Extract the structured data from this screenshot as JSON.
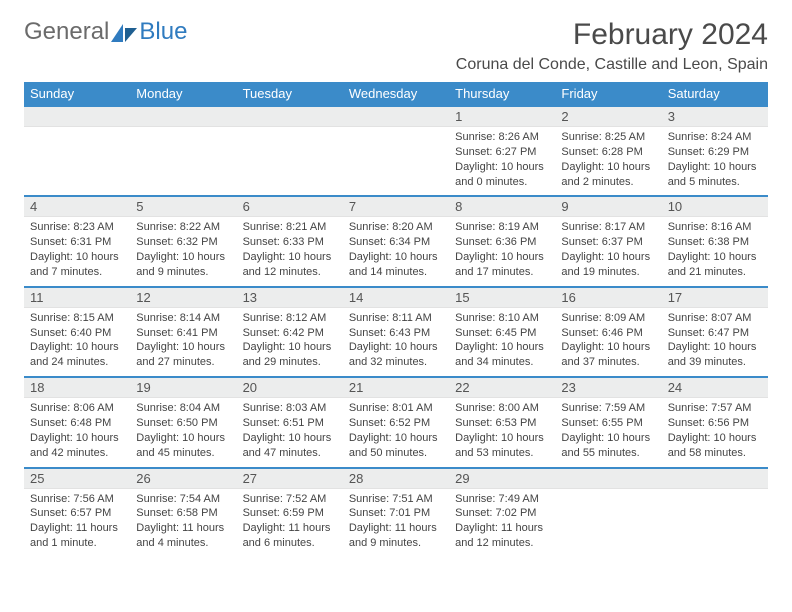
{
  "logo": {
    "general": "General",
    "blue": "Blue"
  },
  "title": "February 2024",
  "location": "Coruna del Conde, Castille and Leon, Spain",
  "colors": {
    "header_bg": "#3b8bc9",
    "header_text": "#ffffff",
    "daynum_bg": "#eceded",
    "row_divider": "#3b8bc9",
    "logo_gray": "#6b6b6b",
    "logo_blue": "#2f7bbf",
    "body_text": "#444444"
  },
  "weekdays": [
    "Sunday",
    "Monday",
    "Tuesday",
    "Wednesday",
    "Thursday",
    "Friday",
    "Saturday"
  ],
  "weeks": [
    [
      null,
      null,
      null,
      null,
      {
        "d": "1",
        "sr": "8:26 AM",
        "ss": "6:27 PM",
        "dl": "10 hours and 0 minutes."
      },
      {
        "d": "2",
        "sr": "8:25 AM",
        "ss": "6:28 PM",
        "dl": "10 hours and 2 minutes."
      },
      {
        "d": "3",
        "sr": "8:24 AM",
        "ss": "6:29 PM",
        "dl": "10 hours and 5 minutes."
      }
    ],
    [
      {
        "d": "4",
        "sr": "8:23 AM",
        "ss": "6:31 PM",
        "dl": "10 hours and 7 minutes."
      },
      {
        "d": "5",
        "sr": "8:22 AM",
        "ss": "6:32 PM",
        "dl": "10 hours and 9 minutes."
      },
      {
        "d": "6",
        "sr": "8:21 AM",
        "ss": "6:33 PM",
        "dl": "10 hours and 12 minutes."
      },
      {
        "d": "7",
        "sr": "8:20 AM",
        "ss": "6:34 PM",
        "dl": "10 hours and 14 minutes."
      },
      {
        "d": "8",
        "sr": "8:19 AM",
        "ss": "6:36 PM",
        "dl": "10 hours and 17 minutes."
      },
      {
        "d": "9",
        "sr": "8:17 AM",
        "ss": "6:37 PM",
        "dl": "10 hours and 19 minutes."
      },
      {
        "d": "10",
        "sr": "8:16 AM",
        "ss": "6:38 PM",
        "dl": "10 hours and 21 minutes."
      }
    ],
    [
      {
        "d": "11",
        "sr": "8:15 AM",
        "ss": "6:40 PM",
        "dl": "10 hours and 24 minutes."
      },
      {
        "d": "12",
        "sr": "8:14 AM",
        "ss": "6:41 PM",
        "dl": "10 hours and 27 minutes."
      },
      {
        "d": "13",
        "sr": "8:12 AM",
        "ss": "6:42 PM",
        "dl": "10 hours and 29 minutes."
      },
      {
        "d": "14",
        "sr": "8:11 AM",
        "ss": "6:43 PM",
        "dl": "10 hours and 32 minutes."
      },
      {
        "d": "15",
        "sr": "8:10 AM",
        "ss": "6:45 PM",
        "dl": "10 hours and 34 minutes."
      },
      {
        "d": "16",
        "sr": "8:09 AM",
        "ss": "6:46 PM",
        "dl": "10 hours and 37 minutes."
      },
      {
        "d": "17",
        "sr": "8:07 AM",
        "ss": "6:47 PM",
        "dl": "10 hours and 39 minutes."
      }
    ],
    [
      {
        "d": "18",
        "sr": "8:06 AM",
        "ss": "6:48 PM",
        "dl": "10 hours and 42 minutes."
      },
      {
        "d": "19",
        "sr": "8:04 AM",
        "ss": "6:50 PM",
        "dl": "10 hours and 45 minutes."
      },
      {
        "d": "20",
        "sr": "8:03 AM",
        "ss": "6:51 PM",
        "dl": "10 hours and 47 minutes."
      },
      {
        "d": "21",
        "sr": "8:01 AM",
        "ss": "6:52 PM",
        "dl": "10 hours and 50 minutes."
      },
      {
        "d": "22",
        "sr": "8:00 AM",
        "ss": "6:53 PM",
        "dl": "10 hours and 53 minutes."
      },
      {
        "d": "23",
        "sr": "7:59 AM",
        "ss": "6:55 PM",
        "dl": "10 hours and 55 minutes."
      },
      {
        "d": "24",
        "sr": "7:57 AM",
        "ss": "6:56 PM",
        "dl": "10 hours and 58 minutes."
      }
    ],
    [
      {
        "d": "25",
        "sr": "7:56 AM",
        "ss": "6:57 PM",
        "dl": "11 hours and 1 minute."
      },
      {
        "d": "26",
        "sr": "7:54 AM",
        "ss": "6:58 PM",
        "dl": "11 hours and 4 minutes."
      },
      {
        "d": "27",
        "sr": "7:52 AM",
        "ss": "6:59 PM",
        "dl": "11 hours and 6 minutes."
      },
      {
        "d": "28",
        "sr": "7:51 AM",
        "ss": "7:01 PM",
        "dl": "11 hours and 9 minutes."
      },
      {
        "d": "29",
        "sr": "7:49 AM",
        "ss": "7:02 PM",
        "dl": "11 hours and 12 minutes."
      },
      null,
      null
    ]
  ],
  "labels": {
    "sunrise": "Sunrise:",
    "sunset": "Sunset:",
    "daylight": "Daylight:"
  }
}
